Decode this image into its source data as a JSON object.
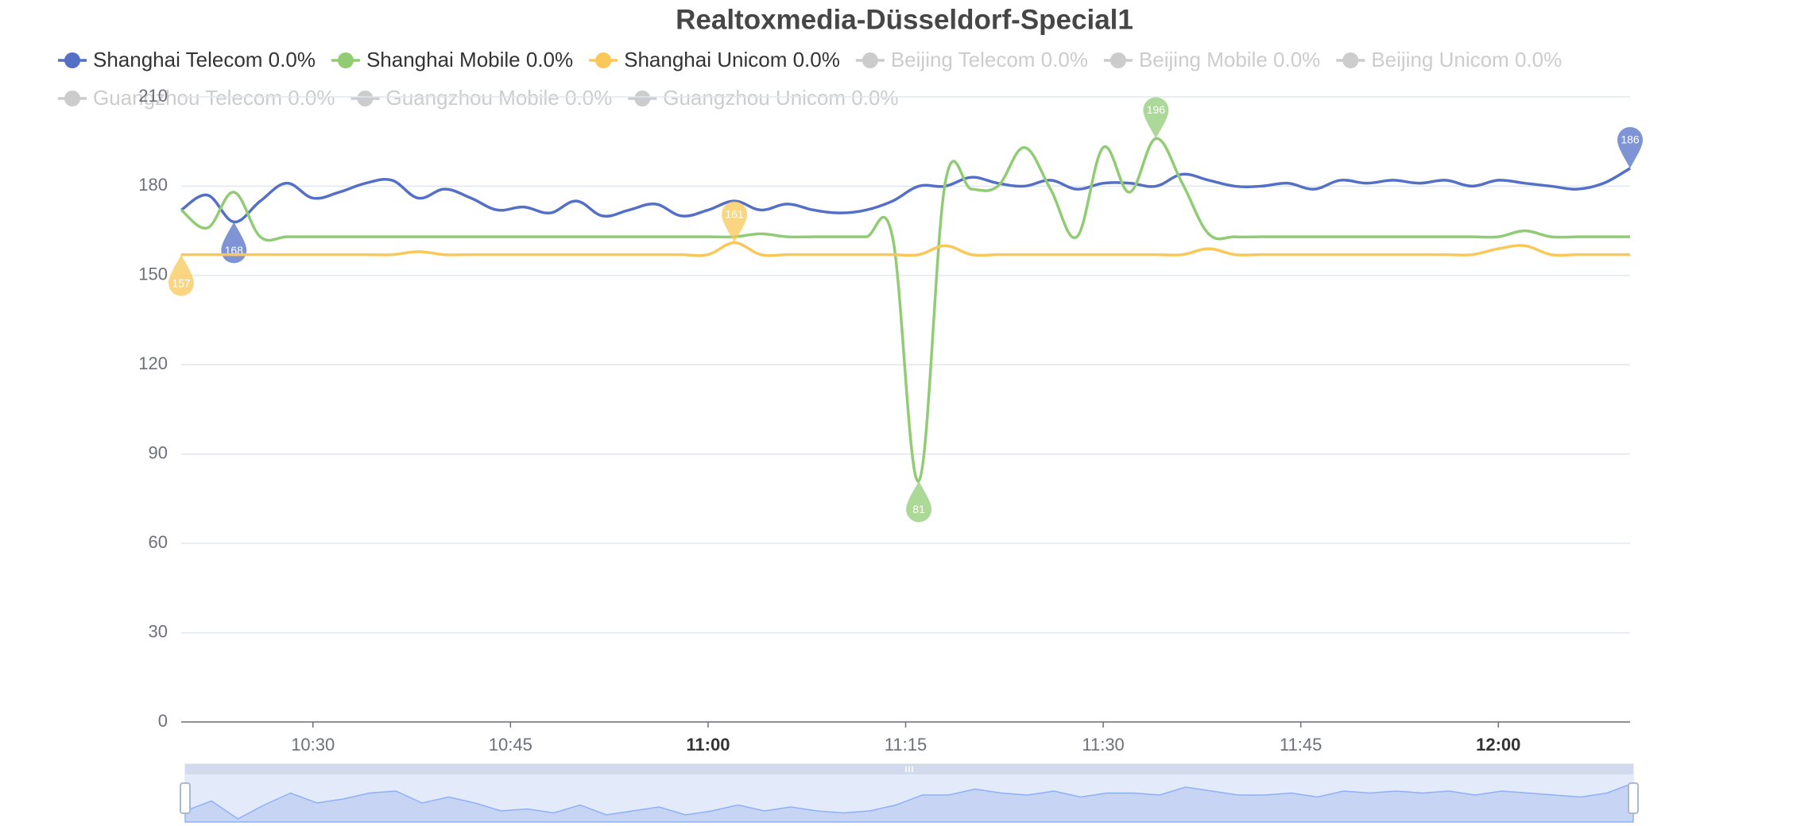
{
  "chart_data": {
    "type": "line",
    "title": "Realtoxmedia-Düsseldorf-Special1",
    "x": [
      "10:20",
      "10:22",
      "10:24",
      "10:26",
      "10:28",
      "10:30",
      "10:32",
      "10:34",
      "10:36",
      "10:38",
      "10:40",
      "10:42",
      "10:44",
      "10:46",
      "10:48",
      "10:50",
      "10:52",
      "10:54",
      "10:56",
      "10:58",
      "11:00",
      "11:02",
      "11:04",
      "11:06",
      "11:08",
      "11:10",
      "11:12",
      "11:14",
      "11:16",
      "11:18",
      "11:20",
      "11:22",
      "11:24",
      "11:26",
      "11:28",
      "11:30",
      "11:32",
      "11:34",
      "11:36",
      "11:38",
      "11:40",
      "11:42",
      "11:44",
      "11:46",
      "11:48",
      "11:50",
      "11:52",
      "11:54",
      "11:56",
      "11:58",
      "12:00",
      "12:02",
      "12:04",
      "12:06",
      "12:08",
      "12:10"
    ],
    "xlim": [
      "10:20",
      "12:10"
    ],
    "xticks": [
      "10:30",
      "10:45",
      "11:00",
      "11:15",
      "11:30",
      "11:45",
      "12:00"
    ],
    "ylim": [
      0,
      210
    ],
    "yticks": [
      0,
      30,
      60,
      90,
      120,
      150,
      180,
      210
    ],
    "grid": true,
    "legend_inactive_color": "#ccc",
    "smooth": true,
    "min_max_markers": true,
    "data_zoom": true,
    "series": [
      {
        "name": "Shanghai Telecom 0.0%",
        "color": "#5470c6",
        "visible": true,
        "values": [
          172,
          177,
          168,
          175,
          181,
          176,
          178,
          181,
          182,
          176,
          179,
          176,
          172,
          173,
          171,
          175,
          170,
          172,
          174,
          170,
          172,
          175,
          172,
          174,
          172,
          171,
          172,
          175,
          180,
          180,
          183,
          181,
          180,
          182,
          179,
          181,
          181,
          180,
          184,
          182,
          180,
          180,
          181,
          179,
          182,
          181,
          182,
          181,
          182,
          180,
          182,
          181,
          180,
          179,
          181,
          186
        ]
      },
      {
        "name": "Shanghai Mobile 0.0%",
        "color": "#91cc75",
        "visible": true,
        "values": [
          172,
          166,
          178,
          163,
          163,
          163,
          163,
          163,
          163,
          163,
          163,
          163,
          163,
          163,
          163,
          163,
          163,
          163,
          163,
          163,
          163,
          163,
          164,
          163,
          163,
          163,
          163,
          163,
          81,
          181,
          179,
          180,
          193,
          179,
          163,
          193,
          178,
          196,
          181,
          164,
          163,
          163,
          163,
          163,
          163,
          163,
          163,
          163,
          163,
          163,
          163,
          165,
          163,
          163,
          163,
          163
        ]
      },
      {
        "name": "Shanghai Unicom 0.0%",
        "color": "#fac858",
        "visible": true,
        "values": [
          157,
          157,
          157,
          157,
          157,
          157,
          157,
          157,
          157,
          158,
          157,
          157,
          157,
          157,
          157,
          157,
          157,
          157,
          157,
          157,
          157,
          161,
          157,
          157,
          157,
          157,
          157,
          157,
          157,
          160,
          157,
          157,
          157,
          157,
          157,
          157,
          157,
          157,
          157,
          159,
          157,
          157,
          157,
          157,
          157,
          157,
          157,
          157,
          157,
          157,
          159,
          160,
          157,
          157,
          157,
          157
        ]
      },
      {
        "name": "Beijing Telecom 0.0%",
        "color": "#ee6666",
        "visible": false
      },
      {
        "name": "Beijing Mobile 0.0%",
        "color": "#73c0de",
        "visible": false
      },
      {
        "name": "Beijing Unicom 0.0%",
        "color": "#3ba272",
        "visible": false
      },
      {
        "name": "Guangzhou Telecom 0.0%",
        "color": "#fc8452",
        "visible": false
      },
      {
        "name": "Guangzhou Mobile 0.0%",
        "color": "#9a60b4",
        "visible": false
      },
      {
        "name": "Guangzhou Unicom 0.0%",
        "color": "#ea7ccc",
        "visible": false
      }
    ]
  }
}
